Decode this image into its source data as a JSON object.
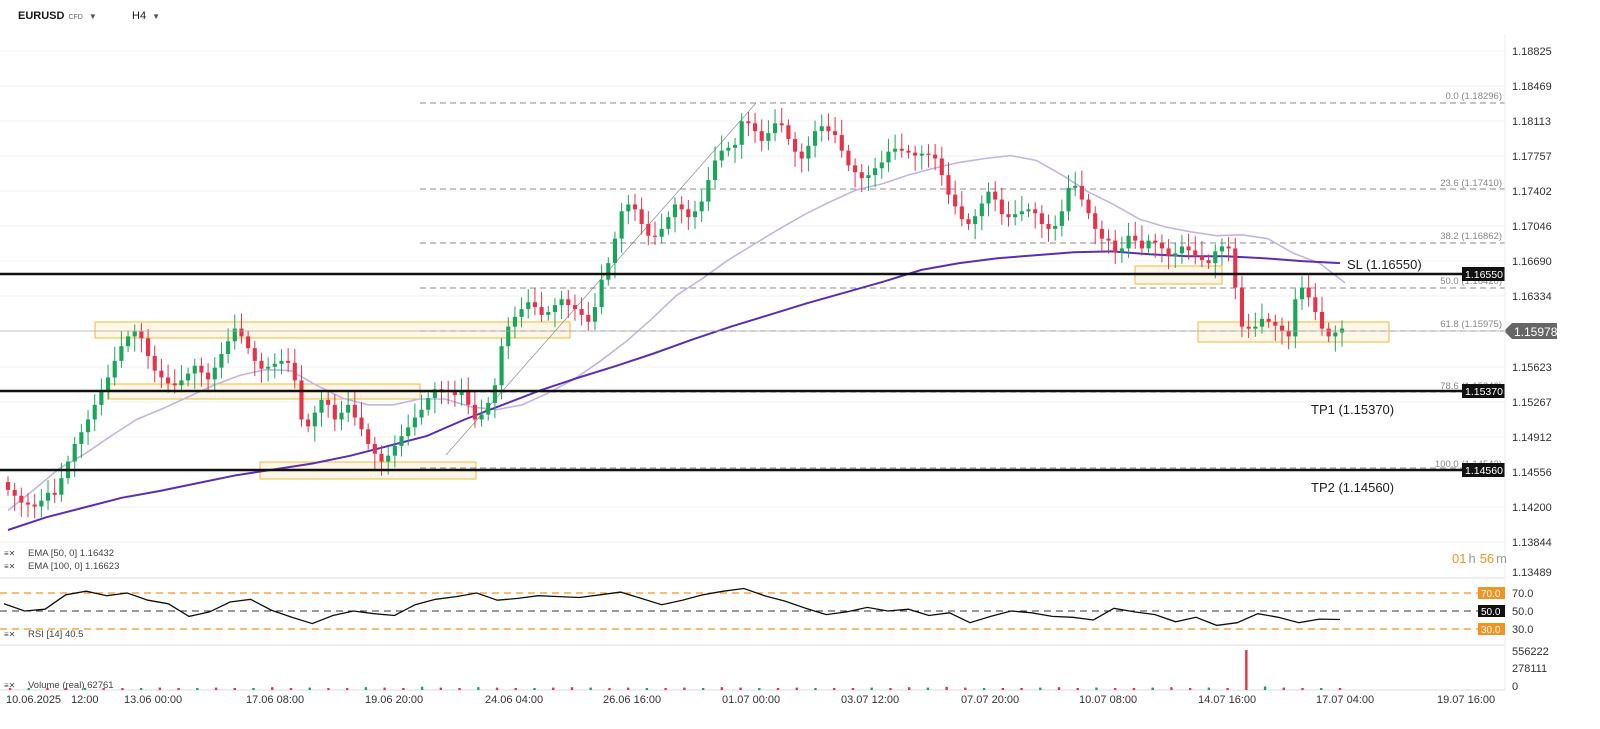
{
  "toolbar": {
    "symbol": "EURUSD",
    "symbol_type": "CFD",
    "timeframe": "H4"
  },
  "price_axis": [
    "1.18825",
    "1.18469",
    "1.18113",
    "1.17757",
    "1.17402",
    "1.17046",
    "1.16690",
    "1.16334",
    "1.15623",
    "1.15267",
    "1.14912",
    "1.14556",
    "1.14200",
    "1.13844",
    "1.13489"
  ],
  "current_price": "1.15978",
  "time_axis": [
    "10.06.2025",
    "12:00",
    "13.06 00:00",
    "17.06 08:00",
    "19.06 20:00",
    "24.06 04:00",
    "26.06 16:00",
    "01.07 00:00",
    "03.07 12:00",
    "07.07 20:00",
    "10.07 08:00",
    "14.07 16:00",
    "17.07 04:00",
    "19.07 16:00"
  ],
  "fib_levels": [
    "0.0 (1.18296)",
    "23.6 (1.17410)",
    "38.2 (1.16862)",
    "50.0 (1.16420)",
    "61.8 (1.15975)",
    "78.6 (1.15346)",
    "100.0 (1.14543)"
  ],
  "levels": {
    "sl": {
      "label": "SL (1.16550)",
      "tag": "1.16550"
    },
    "tp1": {
      "label": "TP1 (1.15370)",
      "tag": "1.15370"
    },
    "tp2": {
      "label": "TP2 (1.14560)",
      "tag": "1.14560"
    }
  },
  "indicators": {
    "ema50": "EMA [50, 0] 1.16432",
    "ema100": "EMA [100, 0] 1.16623",
    "rsi": "RSI [14] 40.5",
    "volume": "Volume (real) 62761"
  },
  "rsi_axis": [
    "70.0",
    "50.0",
    "30.0"
  ],
  "rsi_tags": [
    "70.0",
    "50.0",
    "30.0"
  ],
  "volume_axis": [
    "556222",
    "278111",
    "0"
  ],
  "timer": {
    "h": "01",
    "h_unit": "h",
    "m": "56",
    "m_unit": "m"
  },
  "colors": {
    "bull": "#1aa65a",
    "bear": "#e5334b",
    "ema50": "#c4b4e6",
    "ema100": "#5b2fb5",
    "zone_border": "#f0b93a",
    "zone_fill": "#fdf1d3",
    "rsi_level": "#f39321"
  },
  "chart_data": {
    "type": "candlestick",
    "title": "EURUSD CFD H4",
    "ylim": [
      1.1349,
      1.1883
    ],
    "closes": [
      1.1433,
      1.1427,
      1.142,
      1.1418,
      1.1416,
      1.1422,
      1.143,
      1.1428,
      1.1445,
      1.1462,
      1.148,
      1.1492,
      1.1505,
      1.152,
      1.1535,
      1.1548,
      1.1565,
      1.158,
      1.159,
      1.1595,
      1.1588,
      1.157,
      1.1555,
      1.1548,
      1.1542,
      1.154,
      1.1545,
      1.1552,
      1.156,
      1.1553,
      1.1546,
      1.1558,
      1.1572,
      1.1585,
      1.1598,
      1.159,
      1.1578,
      1.1565,
      1.1557,
      1.1559,
      1.1562,
      1.1565,
      1.1563,
      1.1545,
      1.1505,
      1.1498,
      1.1512,
      1.1525,
      1.152,
      1.1505,
      1.1512,
      1.152,
      1.1507,
      1.1495,
      1.148,
      1.147,
      1.1462,
      1.1468,
      1.1478,
      1.1488,
      1.1497,
      1.1507,
      1.1515,
      1.1527,
      1.1536,
      1.1535,
      1.1534,
      1.153,
      1.1535,
      1.152,
      1.1505,
      1.151,
      1.1522,
      1.154,
      1.158,
      1.16,
      1.161,
      1.1618,
      1.1625,
      1.162,
      1.1612,
      1.1615,
      1.1622,
      1.1628,
      1.1622,
      1.1618,
      1.1612,
      1.1605,
      1.162,
      1.1648,
      1.1665,
      1.169,
      1.1718,
      1.1725,
      1.172,
      1.1705,
      1.1693,
      1.1692,
      1.17,
      1.1712,
      1.1725,
      1.172,
      1.1712,
      1.1718,
      1.1728,
      1.175,
      1.177,
      1.178,
      1.1783,
      1.1786,
      1.181,
      1.1808,
      1.18,
      1.179,
      1.1798,
      1.1808,
      1.1806,
      1.1792,
      1.1779,
      1.1772,
      1.1785,
      1.18,
      1.1805,
      1.18,
      1.1796,
      1.178,
      1.1765,
      1.1758,
      1.1752,
      1.1755,
      1.1762,
      1.1768,
      1.1779,
      1.1782,
      1.178,
      1.1778,
      1.1775,
      1.1777,
      1.1776,
      1.1772,
      1.1755,
      1.1735,
      1.1723,
      1.171,
      1.1705,
      1.1713,
      1.1726,
      1.1738,
      1.173,
      1.1715,
      1.1712,
      1.1715,
      1.1718,
      1.172,
      1.1716,
      1.1705,
      1.17,
      1.1703,
      1.1718,
      1.1742,
      1.1744,
      1.173,
      1.1716,
      1.17,
      1.169,
      1.1688,
      1.1676,
      1.168,
      1.1693,
      1.1688,
      1.168,
      1.1688,
      1.1686,
      1.168,
      1.1672,
      1.1675,
      1.1682,
      1.1678,
      1.1672,
      1.1668,
      1.1665,
      1.1677,
      1.1682,
      1.168,
      1.164,
      1.16,
      1.1598,
      1.16,
      1.1608,
      1.1605,
      1.1601,
      1.1596,
      1.159,
      1.1628,
      1.164,
      1.163,
      1.1615,
      1.1598,
      1.159,
      1.1594,
      1.1598
    ],
    "ema50": [
      1.1412,
      1.1433,
      1.1455,
      1.147,
      1.1488,
      1.1505,
      1.1516,
      1.1528,
      1.154,
      1.155,
      1.1556,
      1.1555,
      1.154,
      1.1527,
      1.152,
      1.152,
      1.1526,
      1.1526,
      1.1518,
      1.1515,
      1.152,
      1.1532,
      1.1546,
      1.1564,
      1.1584,
      1.1607,
      1.1632,
      1.1649,
      1.1668,
      1.1684,
      1.17,
      1.1715,
      1.1728,
      1.174,
      1.1746,
      1.1755,
      1.1762,
      1.1768,
      1.1772,
      1.1775,
      1.177,
      1.1755,
      1.1738,
      1.1725,
      1.171,
      1.1702,
      1.1697,
      1.1693,
      1.1694,
      1.169,
      1.1675,
      1.1665,
      1.1645
    ],
    "ema100": [
      1.1392,
      1.1405,
      1.1415,
      1.1425,
      1.1432,
      1.144,
      1.1448,
      1.1454,
      1.146,
      1.1468,
      1.1478,
      1.1488,
      1.1505,
      1.152,
      1.1535,
      1.1548,
      1.156,
      1.1573,
      1.1587,
      1.16,
      1.1612,
      1.1624,
      1.1635,
      1.1646,
      1.1658,
      1.1665,
      1.167,
      1.1673,
      1.1676,
      1.1677,
      1.1674,
      1.1672,
      1.1672,
      1.167,
      1.1667,
      1.1665
    ],
    "rsi": [
      58,
      50,
      52,
      68,
      72,
      67,
      70,
      62,
      58,
      44,
      49,
      60,
      63,
      51,
      43,
      36,
      45,
      50,
      47,
      45,
      57,
      63,
      66,
      70,
      62,
      64,
      67,
      66,
      65,
      68,
      71,
      64,
      57,
      62,
      68,
      72,
      75,
      67,
      61,
      53,
      46,
      49,
      54,
      50,
      52,
      45,
      48,
      37,
      44,
      50,
      48,
      44,
      43,
      40,
      53,
      49,
      46,
      38,
      43,
      34,
      37,
      47,
      43,
      37,
      41,
      40.5
    ],
    "volume": [
      0.02,
      0.01,
      0.03,
      0.02,
      0.04,
      0.02,
      0.03,
      0.05,
      0.06,
      0.04,
      0.03,
      0.06,
      0.05,
      0.04,
      0.07,
      0.05,
      0.06,
      0.04,
      0.05,
      0.07,
      0.06,
      0.05,
      0.08,
      0.06,
      0.05,
      0.07,
      0.06,
      0.04,
      0.05,
      0.06,
      0.07,
      0.06,
      0.05,
      0.06,
      0.05,
      0.04,
      0.06,
      0.05,
      0.07,
      0.06,
      0.05,
      0.04,
      0.06,
      0.05,
      0.04,
      0.05,
      0.06,
      0.05,
      0.07,
      0.06,
      0.08,
      0.06,
      0.05,
      0.04,
      0.05,
      0.06,
      0.07,
      0.05,
      0.06,
      0.04,
      0.05,
      0.06,
      0.07,
      0.05,
      0.06,
      0.05,
      1.0,
      0.09,
      0.06,
      0.05,
      0.04,
      0.03
    ]
  }
}
